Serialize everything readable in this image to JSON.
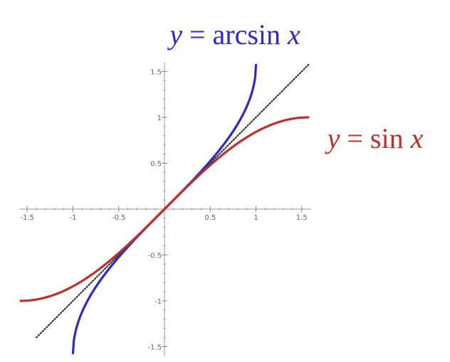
{
  "chart_data": {
    "type": "line",
    "title": "",
    "xlabel": "",
    "ylabel": "",
    "xlim": [
      -1.5708,
      1.5708
    ],
    "ylim": [
      -1.5708,
      1.5708
    ],
    "grid": false,
    "x_ticks": [
      "-1.5",
      "-1",
      "-0.5",
      "0.5",
      "1",
      "1.5"
    ],
    "y_ticks": [
      "1.5",
      "1",
      "0.5",
      "-0.5",
      "-1",
      "-1.5"
    ],
    "x_tick_values": [
      -1.5,
      -1,
      -0.5,
      0.5,
      1,
      1.5
    ],
    "y_tick_values": [
      1.5,
      1,
      0.5,
      -0.5,
      -1,
      -1.5
    ],
    "annotations": [
      {
        "parts": [
          {
            "text": "y",
            "italic": true
          },
          {
            "text": " = arcsin ",
            "italic": false
          },
          {
            "text": "x",
            "italic": true
          }
        ],
        "color": "#2a2ad0"
      },
      {
        "parts": [
          {
            "text": "y",
            "italic": true
          },
          {
            "text": " = sin ",
            "italic": false
          },
          {
            "text": "x",
            "italic": true
          }
        ],
        "color": "#c0302a"
      }
    ],
    "series": [
      {
        "function": "arcsin",
        "domain": [
          -1,
          1
        ],
        "color": "#2a2ad0",
        "style": "solid"
      },
      {
        "function": "sin",
        "domain": [
          -1.5708,
          1.5708
        ],
        "color": "#c0302a",
        "style": "solid"
      },
      {
        "function": "identity",
        "domain": [
          -1.4,
          1.58
        ],
        "color": "#222222",
        "style": "dotted"
      }
    ]
  }
}
